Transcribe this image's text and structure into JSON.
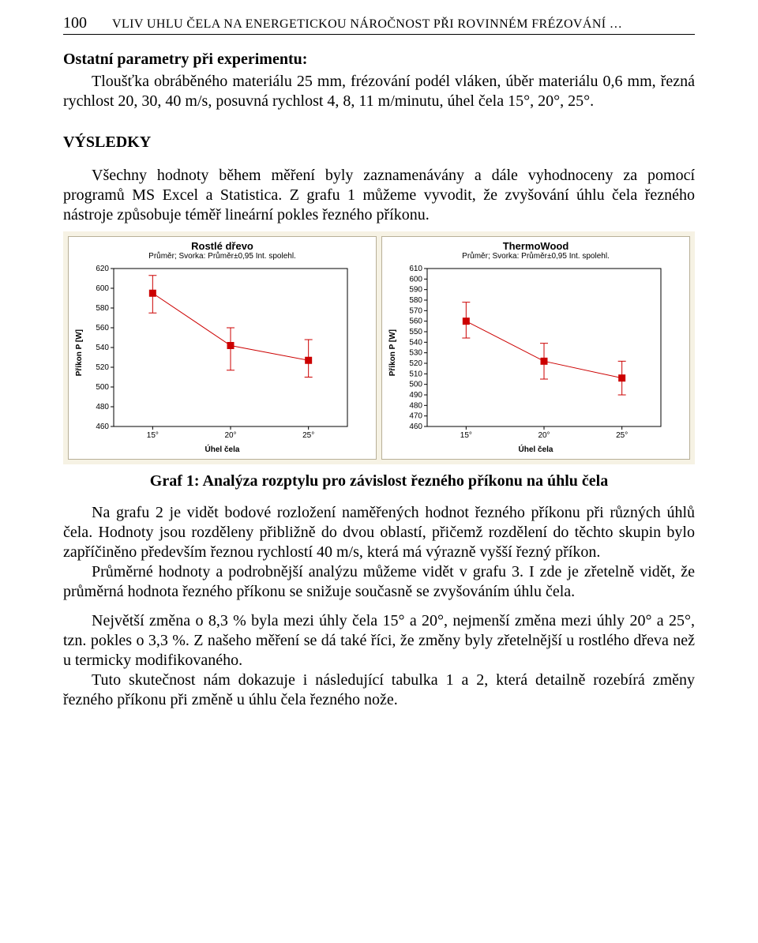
{
  "page": {
    "number": "100",
    "running_title": "VLIV UHLU ČELA NA ENERGETICKOU NÁROČNOST PŘI ROVINNÉM FRÉZOVÁNÍ …"
  },
  "section_params_title": "Ostatní parametry při experimentu:",
  "params_text": "Tloušťka obráběného materiálu 25 mm, frézování podél vláken, úběr materiálu 0,6 mm, řezná rychlost 20, 30, 40 m/s, posuvná rychlost 4, 8, 11 m/minutu, úhel čela 15°, 20°, 25°.",
  "results_heading": "VÝSLEDKY",
  "para1": "Všechny hodnoty během měření byly zaznamenávány a dále vyhodnoceny za pomocí programů MS Excel a Statistica. Z grafu 1 můžeme vyvodit, že zvyšování úhlu čela řezného nástroje způsobuje téměř lineární pokles řezného příkonu.",
  "caption1": "Graf 1: Analýza rozptylu pro závislost řezného příkonu na úhlu čela",
  "para2": "Na grafu 2 je vidět bodové rozložení naměřených hodnot řezného příkonu při různých úhlů čela. Hodnoty jsou rozděleny přibližně do dvou oblastí, přičemž rozdělení do těchto skupin bylo zapříčiněno především řeznou rychlostí 40 m/s, která má výrazně vyšší řezný příkon.",
  "para3": "Průměrné hodnoty a podrobnější analýzu můžeme vidět v grafu 3. I zde je zřetelně vidět, že průměrná hodnota řezného příkonu se snižuje současně se zvyšováním úhlu čela.",
  "para4": "Největší změna o 8,3 % byla mezi úhly čela 15° a 20°, nejmenší změna mezi úhly 20° a 25°, tzn. pokles o 3,3 %. Z našeho měření se dá také říci, že změny byly zřetelnější u rostlého dřeva než u termicky modifikovaného.",
  "para5": "Tuto skutečnost nám dokazuje i následující tabulka 1 a 2, která detailně rozebírá změny řezného příkonu při změně u úhlu čela řezného nože.",
  "chart_common": {
    "subtitle": "Průměr; Svorka: Průměr±0,95 Int. spolehl.",
    "ylabel": "Příkon P [W]",
    "xlabel": "Úhel čela",
    "xticks": [
      "15°",
      "20°",
      "25°"
    ],
    "line_color": "#cc0000",
    "marker_fill": "#cc0000",
    "marker_size": 4,
    "whisker_cap_half": 5,
    "line_width": 1,
    "plot_bg": "#ffffff",
    "frame_color": "#000000",
    "ytick_color": "#000000",
    "grid": false
  },
  "chart_left": {
    "title": "Rostlé dřevo",
    "ylim": [
      460,
      620
    ],
    "ytick_step": 20,
    "points": [
      {
        "x": "15°",
        "mean": 595,
        "lo": 575,
        "hi": 613
      },
      {
        "x": "20°",
        "mean": 542,
        "lo": 517,
        "hi": 560
      },
      {
        "x": "25°",
        "mean": 527,
        "lo": 510,
        "hi": 548
      }
    ]
  },
  "chart_right": {
    "title": "ThermoWood",
    "ylim": [
      460,
      610
    ],
    "ytick_step": 10,
    "points": [
      {
        "x": "15°",
        "mean": 560,
        "lo": 544,
        "hi": 578
      },
      {
        "x": "20°",
        "mean": 522,
        "lo": 505,
        "hi": 539
      },
      {
        "x": "25°",
        "mean": 506,
        "lo": 490,
        "hi": 522
      }
    ]
  }
}
